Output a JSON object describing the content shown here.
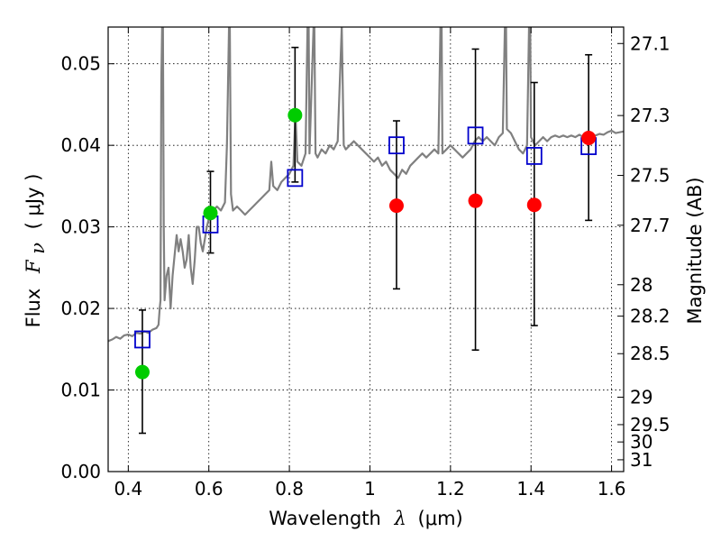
{
  "chart_data": {
    "type": "scatter",
    "xlabel": {
      "prefix": "Wavelength",
      "symbol": "λ",
      "unit": "(μm)"
    },
    "ylabel": {
      "prefix": "Flux",
      "symbol": "F",
      "subscript": "ν",
      "unit": "( μJy )"
    },
    "y2label": "Magnitude (AB)",
    "xlim": [
      0.35,
      1.63
    ],
    "ylim": [
      0.0,
      0.0545
    ],
    "x_ticks": [
      0.4,
      0.6,
      0.8,
      1.0,
      1.2,
      1.4,
      1.6
    ],
    "x_tick_labels": [
      "0.4",
      "0.6",
      "0.8",
      "1",
      "1.2",
      "1.4",
      "1.6"
    ],
    "y_ticks": [
      0.0,
      0.01,
      0.02,
      0.03,
      0.04,
      0.05
    ],
    "y_tick_labels": [
      "0.00",
      "0.01",
      "0.02",
      "0.03",
      "0.04",
      "0.05"
    ],
    "y2_ticks": [
      27.1,
      27.3,
      27.5,
      27.7,
      28,
      28.2,
      28.5,
      29,
      29.5,
      30,
      31
    ],
    "y2_tick_labels": [
      "27.1",
      "27.3",
      "27.5",
      "27.7",
      "28",
      "28.2",
      "28.5",
      "29",
      "29.5",
      "30",
      "31"
    ],
    "grid": true,
    "colors": {
      "spectrum": "#808080",
      "model_box": "#0000cc",
      "green": "#00cc00",
      "red": "#ff0000",
      "errorbar": "#000000"
    },
    "spectrum": [
      [
        0.35,
        0.016
      ],
      [
        0.36,
        0.0162
      ],
      [
        0.37,
        0.0165
      ],
      [
        0.38,
        0.0163
      ],
      [
        0.39,
        0.0167
      ],
      [
        0.4,
        0.0168
      ],
      [
        0.41,
        0.0166
      ],
      [
        0.42,
        0.017
      ],
      [
        0.43,
        0.0169
      ],
      [
        0.44,
        0.0172
      ],
      [
        0.45,
        0.017
      ],
      [
        0.46,
        0.0174
      ],
      [
        0.47,
        0.0176
      ],
      [
        0.475,
        0.018
      ],
      [
        0.478,
        0.02
      ],
      [
        0.48,
        0.021
      ],
      [
        0.482,
        0.048
      ],
      [
        0.484,
        0.0545
      ],
      [
        0.486,
        0.0545
      ],
      [
        0.488,
        0.03
      ],
      [
        0.49,
        0.021
      ],
      [
        0.495,
        0.024
      ],
      [
        0.5,
        0.025
      ],
      [
        0.505,
        0.02
      ],
      [
        0.51,
        0.024
      ],
      [
        0.515,
        0.0265
      ],
      [
        0.52,
        0.029
      ],
      [
        0.525,
        0.027
      ],
      [
        0.53,
        0.0285
      ],
      [
        0.535,
        0.027
      ],
      [
        0.54,
        0.025
      ],
      [
        0.545,
        0.026
      ],
      [
        0.55,
        0.029
      ],
      [
        0.555,
        0.025
      ],
      [
        0.56,
        0.023
      ],
      [
        0.565,
        0.026
      ],
      [
        0.57,
        0.03
      ],
      [
        0.575,
        0.03
      ],
      [
        0.58,
        0.028
      ],
      [
        0.585,
        0.027
      ],
      [
        0.59,
        0.0285
      ],
      [
        0.595,
        0.03
      ],
      [
        0.6,
        0.031
      ],
      [
        0.61,
        0.032
      ],
      [
        0.62,
        0.0325
      ],
      [
        0.63,
        0.032
      ],
      [
        0.64,
        0.033
      ],
      [
        0.645,
        0.04
      ],
      [
        0.65,
        0.0545
      ],
      [
        0.652,
        0.0545
      ],
      [
        0.655,
        0.034
      ],
      [
        0.66,
        0.032
      ],
      [
        0.67,
        0.0325
      ],
      [
        0.68,
        0.032
      ],
      [
        0.69,
        0.0315
      ],
      [
        0.7,
        0.032
      ],
      [
        0.71,
        0.0325
      ],
      [
        0.72,
        0.033
      ],
      [
        0.73,
        0.0335
      ],
      [
        0.74,
        0.034
      ],
      [
        0.75,
        0.0345
      ],
      [
        0.755,
        0.038
      ],
      [
        0.76,
        0.035
      ],
      [
        0.77,
        0.0345
      ],
      [
        0.78,
        0.0355
      ],
      [
        0.79,
        0.036
      ],
      [
        0.8,
        0.0365
      ],
      [
        0.81,
        0.0375
      ],
      [
        0.815,
        0.044
      ],
      [
        0.82,
        0.038
      ],
      [
        0.83,
        0.0375
      ],
      [
        0.84,
        0.039
      ],
      [
        0.845,
        0.0545
      ],
      [
        0.848,
        0.0545
      ],
      [
        0.85,
        0.039
      ],
      [
        0.86,
        0.0545
      ],
      [
        0.862,
        0.0545
      ],
      [
        0.865,
        0.039
      ],
      [
        0.87,
        0.0385
      ],
      [
        0.88,
        0.0395
      ],
      [
        0.89,
        0.039
      ],
      [
        0.9,
        0.04
      ],
      [
        0.91,
        0.0395
      ],
      [
        0.92,
        0.0405
      ],
      [
        0.93,
        0.0545
      ],
      [
        0.935,
        0.04
      ],
      [
        0.94,
        0.0395
      ],
      [
        0.95,
        0.04
      ],
      [
        0.96,
        0.0405
      ],
      [
        0.97,
        0.04
      ],
      [
        0.98,
        0.0395
      ],
      [
        0.99,
        0.039
      ],
      [
        1.0,
        0.0385
      ],
      [
        1.01,
        0.038
      ],
      [
        1.02,
        0.0385
      ],
      [
        1.03,
        0.0375
      ],
      [
        1.04,
        0.038
      ],
      [
        1.05,
        0.037
      ],
      [
        1.06,
        0.0365
      ],
      [
        1.07,
        0.036
      ],
      [
        1.08,
        0.037
      ],
      [
        1.09,
        0.0365
      ],
      [
        1.1,
        0.0375
      ],
      [
        1.11,
        0.038
      ],
      [
        1.12,
        0.0385
      ],
      [
        1.13,
        0.039
      ],
      [
        1.14,
        0.0385
      ],
      [
        1.15,
        0.039
      ],
      [
        1.16,
        0.0395
      ],
      [
        1.17,
        0.039
      ],
      [
        1.175,
        0.0545
      ],
      [
        1.178,
        0.0545
      ],
      [
        1.18,
        0.039
      ],
      [
        1.19,
        0.0395
      ],
      [
        1.2,
        0.04
      ],
      [
        1.21,
        0.0395
      ],
      [
        1.22,
        0.039
      ],
      [
        1.23,
        0.0385
      ],
      [
        1.24,
        0.039
      ],
      [
        1.25,
        0.0395
      ],
      [
        1.26,
        0.0405
      ],
      [
        1.27,
        0.041
      ],
      [
        1.28,
        0.0405
      ],
      [
        1.29,
        0.041
      ],
      [
        1.3,
        0.0405
      ],
      [
        1.31,
        0.04
      ],
      [
        1.32,
        0.041
      ],
      [
        1.33,
        0.0415
      ],
      [
        1.335,
        0.0545
      ],
      [
        1.338,
        0.0545
      ],
      [
        1.34,
        0.042
      ],
      [
        1.35,
        0.0415
      ],
      [
        1.36,
        0.0405
      ],
      [
        1.37,
        0.0395
      ],
      [
        1.38,
        0.039
      ],
      [
        1.39,
        0.04
      ],
      [
        1.395,
        0.0545
      ],
      [
        1.398,
        0.0545
      ],
      [
        1.4,
        0.041
      ],
      [
        1.41,
        0.04
      ],
      [
        1.42,
        0.0405
      ],
      [
        1.43,
        0.041
      ],
      [
        1.44,
        0.0405
      ],
      [
        1.45,
        0.041
      ],
      [
        1.46,
        0.0412
      ],
      [
        1.47,
        0.041
      ],
      [
        1.48,
        0.0412
      ],
      [
        1.49,
        0.041
      ],
      [
        1.5,
        0.0412
      ],
      [
        1.51,
        0.041
      ],
      [
        1.52,
        0.0413
      ],
      [
        1.53,
        0.041
      ],
      [
        1.54,
        0.0412
      ],
      [
        1.55,
        0.041
      ],
      [
        1.56,
        0.0412
      ],
      [
        1.57,
        0.0414
      ],
      [
        1.58,
        0.0413
      ],
      [
        1.59,
        0.0416
      ],
      [
        1.6,
        0.0418
      ],
      [
        1.61,
        0.0415
      ],
      [
        1.62,
        0.0416
      ],
      [
        1.63,
        0.0417
      ]
    ],
    "model_points": [
      {
        "x": 0.435,
        "y": 0.0162
      },
      {
        "x": 0.604,
        "y": 0.0303
      },
      {
        "x": 0.814,
        "y": 0.036
      },
      {
        "x": 1.066,
        "y": 0.04
      },
      {
        "x": 1.262,
        "y": 0.0412
      },
      {
        "x": 1.408,
        "y": 0.0387
      },
      {
        "x": 1.543,
        "y": 0.0399
      }
    ],
    "observed_points": [
      {
        "x": 0.435,
        "y": 0.0122,
        "ylo": 0.0047,
        "yhi": 0.0198,
        "color": "green"
      },
      {
        "x": 0.604,
        "y": 0.0317,
        "ylo": 0.0268,
        "yhi": 0.0368,
        "color": "green"
      },
      {
        "x": 0.814,
        "y": 0.0437,
        "ylo": 0.0355,
        "yhi": 0.052,
        "color": "green"
      },
      {
        "x": 1.066,
        "y": 0.0326,
        "ylo": 0.0224,
        "yhi": 0.043,
        "color": "red"
      },
      {
        "x": 1.262,
        "y": 0.0332,
        "ylo": 0.0149,
        "yhi": 0.0518,
        "color": "red"
      },
      {
        "x": 1.408,
        "y": 0.0327,
        "ylo": 0.0179,
        "yhi": 0.0477,
        "color": "red"
      },
      {
        "x": 1.543,
        "y": 0.0409,
        "ylo": 0.0308,
        "yhi": 0.0511,
        "color": "red"
      }
    ]
  }
}
